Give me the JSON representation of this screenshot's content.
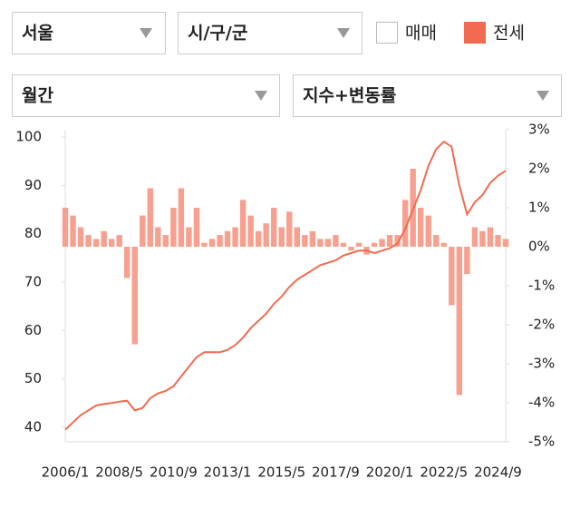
{
  "controls": {
    "region": "서울",
    "district": "시/구/군",
    "period": "월간",
    "metric": "지수+변동률",
    "checkboxes": [
      {
        "label": "매매",
        "checked": false,
        "color": "#f26a4f"
      },
      {
        "label": "전세",
        "checked": true,
        "color": "#f26a4f"
      }
    ]
  },
  "chart_data": {
    "type": "combo",
    "categories": [
      "2006/1",
      null,
      null,
      null,
      null,
      null,
      null,
      "2008/5",
      null,
      null,
      null,
      null,
      null,
      null,
      "2010/9",
      null,
      null,
      null,
      null,
      null,
      null,
      "2013/1",
      null,
      null,
      null,
      null,
      null,
      null,
      "2015/5",
      null,
      null,
      null,
      null,
      null,
      null,
      "2017/9",
      null,
      null,
      null,
      null,
      null,
      null,
      "2020/1",
      null,
      null,
      null,
      null,
      null,
      null,
      "2022/5",
      null,
      null,
      null,
      null,
      null,
      null,
      "2024/9",
      null
    ],
    "series": [
      {
        "color": "#f7a08f",
        "axis": "y2",
        "kind": "bar",
        "values": [
          1.0,
          0.8,
          0.5,
          0.3,
          0.2,
          0.4,
          0.2,
          0.3,
          -0.8,
          -2.5,
          0.8,
          1.5,
          0.5,
          0.3,
          1.0,
          1.5,
          0.5,
          1.0,
          0.1,
          0.2,
          0.3,
          0.4,
          0.5,
          1.2,
          0.8,
          0.4,
          0.6,
          1.0,
          0.5,
          0.9,
          0.5,
          0.3,
          0.4,
          0.2,
          0.2,
          0.3,
          0.1,
          -0.1,
          0.1,
          -0.2,
          0.1,
          0.2,
          0.3,
          0.3,
          1.2,
          2.0,
          1.0,
          0.8,
          0.3,
          0.1,
          -1.5,
          -3.8,
          -0.7,
          0.5,
          0.4,
          0.5,
          0.3,
          0.2
        ]
      },
      {
        "color": "#f26a4f",
        "axis": "y",
        "kind": "line",
        "values": [
          39.5,
          41,
          42.5,
          43.5,
          44.5,
          44.8,
          45,
          45.3,
          45.5,
          43.5,
          44,
          46,
          47,
          47.5,
          48.5,
          50.5,
          52.5,
          54.5,
          55.5,
          55.5,
          55.5,
          56,
          57,
          58.5,
          60.5,
          62,
          63.5,
          65.5,
          67,
          69,
          70.5,
          71.5,
          72.5,
          73.5,
          74,
          74.5,
          75.5,
          76,
          76.5,
          76.5,
          76,
          76.5,
          77,
          78,
          81,
          85,
          89,
          94,
          97.5,
          99,
          98,
          90,
          84,
          86.5,
          88,
          90.5,
          92,
          93
        ]
      }
    ],
    "ylim": [
      37,
      101.5
    ],
    "yticks": [
      40,
      50,
      60,
      70,
      80,
      90,
      100
    ],
    "y2lim": [
      -5,
      3
    ],
    "y2ticks": [
      {
        "value": 3,
        "label": "3%"
      },
      {
        "value": 2,
        "label": "2%"
      },
      {
        "value": 1,
        "label": "1%"
      },
      {
        "value": 0,
        "label": "0%"
      },
      {
        "value": -1,
        "label": "-1%"
      },
      {
        "value": -2,
        "label": "-2%"
      },
      {
        "value": -3,
        "label": "-3%"
      },
      {
        "value": -4,
        "label": "-4%"
      },
      {
        "value": -5,
        "label": "-5%"
      }
    ],
    "grid": false
  }
}
